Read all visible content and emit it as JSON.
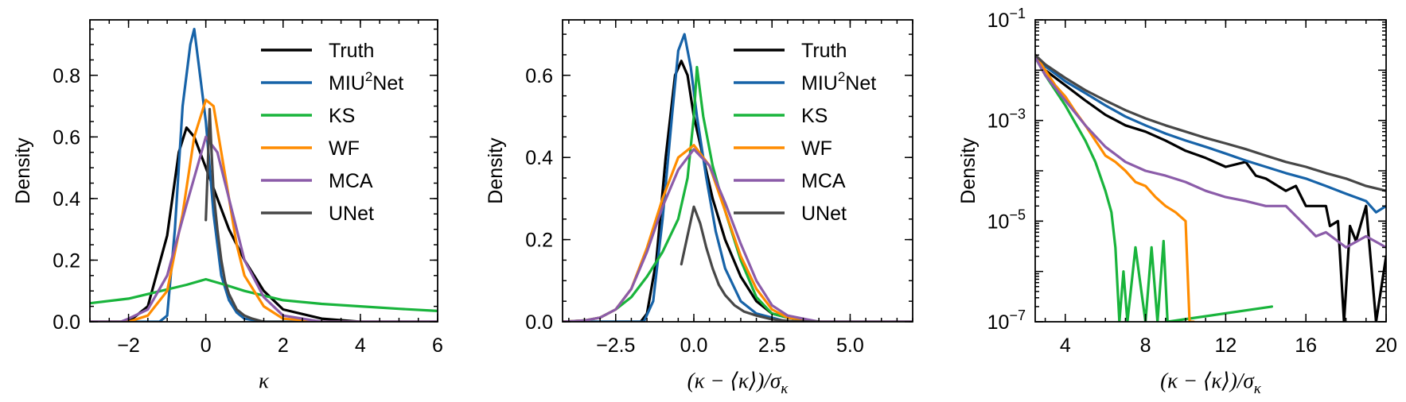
{
  "colors": {
    "Truth": "#000000",
    "MIU2Net": "#1763a8",
    "KS": "#19b43c",
    "WF": "#ff8c00",
    "MCA": "#8b5ca9",
    "UNet": "#474747"
  },
  "chart_data": [
    {
      "type": "line",
      "title": "",
      "xlabel": "κ",
      "ylabel": "Density",
      "xlim": [
        -3,
        6
      ],
      "ylim": [
        0,
        0.98
      ],
      "yscale": "linear",
      "xticks": [
        -2,
        0,
        2,
        4,
        6
      ],
      "xtick_labels": [
        "−2",
        "0",
        "2",
        "4",
        "6"
      ],
      "yticks": [
        0.0,
        0.2,
        0.4,
        0.6,
        0.8
      ],
      "ytick_labels": [
        "0.0",
        "0.2",
        "0.4",
        "0.6",
        "0.8"
      ],
      "legend": {
        "placement": "top-right",
        "entries": [
          "Truth",
          "MIU2Net",
          "KS",
          "WF",
          "MCA",
          "UNet"
        ],
        "labels": [
          "Truth",
          "MIU",
          "KS",
          "WF",
          "MCA",
          "UNet"
        ],
        "superscript": "2",
        "suffix": "Net"
      },
      "series": [
        {
          "name": "Truth",
          "x": [
            -3,
            -2,
            -1.5,
            -1,
            -0.7,
            -0.5,
            -0.3,
            0,
            0.3,
            0.6,
            1,
            1.5,
            2,
            3,
            4,
            6
          ],
          "y": [
            0,
            0,
            0.05,
            0.28,
            0.55,
            0.63,
            0.6,
            0.5,
            0.4,
            0.3,
            0.2,
            0.1,
            0.04,
            0.01,
            0,
            0
          ]
        },
        {
          "name": "MIU2Net",
          "x": [
            -3,
            -1.2,
            -1,
            -0.8,
            -0.6,
            -0.4,
            -0.3,
            -0.2,
            0,
            0.2,
            0.4,
            0.6,
            0.8,
            1,
            1.5,
            6
          ],
          "y": [
            0,
            0,
            0.02,
            0.3,
            0.7,
            0.9,
            0.95,
            0.85,
            0.65,
            0.35,
            0.15,
            0.07,
            0.03,
            0.01,
            0,
            0
          ]
        },
        {
          "name": "KS",
          "x": [
            -3,
            -2,
            -1,
            -0.5,
            0,
            0.5,
            1,
            2,
            3,
            4,
            5,
            6
          ],
          "y": [
            0.06,
            0.075,
            0.105,
            0.12,
            0.138,
            0.12,
            0.1,
            0.07,
            0.058,
            0.05,
            0.042,
            0.035
          ]
        },
        {
          "name": "WF",
          "x": [
            -3,
            -2,
            -1.5,
            -1,
            -0.6,
            -0.3,
            0,
            0.2,
            0.4,
            0.6,
            0.8,
            1,
            1.5,
            2,
            3,
            6
          ],
          "y": [
            0,
            0,
            0.02,
            0.1,
            0.35,
            0.6,
            0.72,
            0.7,
            0.55,
            0.4,
            0.25,
            0.15,
            0.05,
            0.01,
            0,
            0
          ]
        },
        {
          "name": "MCA",
          "x": [
            -3,
            -2.2,
            -2,
            -1.5,
            -1,
            -0.5,
            0,
            0.3,
            0.5,
            0.8,
            1,
            1.5,
            2,
            3,
            6
          ],
          "y": [
            0,
            0,
            0.01,
            0.04,
            0.15,
            0.38,
            0.6,
            0.55,
            0.45,
            0.3,
            0.2,
            0.08,
            0.02,
            0,
            0
          ]
        },
        {
          "name": "UNet",
          "x": [
            0,
            0.05,
            0.1,
            0.15,
            0.2,
            0.3,
            0.4,
            0.5,
            0.6,
            0.8,
            1,
            1.2,
            1.5,
            2
          ],
          "y": [
            0.33,
            0.5,
            0.69,
            0.55,
            0.42,
            0.3,
            0.2,
            0.13,
            0.09,
            0.04,
            0.02,
            0.01,
            0,
            0
          ]
        }
      ]
    },
    {
      "type": "line",
      "title": "",
      "xlabel": "(κ − ⟨κ⟩)/σ",
      "xlabel_sub": "κ",
      "ylabel": "Density",
      "xlim": [
        -4.2,
        7
      ],
      "ylim": [
        0,
        0.735
      ],
      "yscale": "linear",
      "xticks": [
        -2.5,
        0.0,
        2.5,
        5.0
      ],
      "xtick_labels": [
        "−2.5",
        "0.0",
        "2.5",
        "5.0"
      ],
      "yticks": [
        0.0,
        0.2,
        0.4,
        0.6
      ],
      "ytick_labels": [
        "0.0",
        "0.2",
        "0.4",
        "0.6"
      ],
      "legend": {
        "placement": "top-right",
        "entries": [
          "Truth",
          "MIU2Net",
          "KS",
          "WF",
          "MCA",
          "UNet"
        ],
        "labels": [
          "Truth",
          "MIU",
          "KS",
          "WF",
          "MCA",
          "UNet"
        ],
        "superscript": "2",
        "suffix": "Net"
      },
      "series": [
        {
          "name": "Truth",
          "x": [
            -4.2,
            -1.7,
            -1.5,
            -1.2,
            -0.9,
            -0.6,
            -0.4,
            -0.2,
            0,
            0.3,
            0.6,
            1,
            1.5,
            2,
            2.5,
            3,
            4,
            7
          ],
          "y": [
            0,
            0,
            0.02,
            0.15,
            0.4,
            0.6,
            0.635,
            0.6,
            0.5,
            0.4,
            0.3,
            0.2,
            0.11,
            0.05,
            0.02,
            0.01,
            0,
            0
          ]
        },
        {
          "name": "MIU2Net",
          "x": [
            -4.2,
            -1.6,
            -1.3,
            -1,
            -0.7,
            -0.5,
            -0.3,
            -0.1,
            0.1,
            0.4,
            0.7,
            1,
            1.5,
            2,
            3,
            7
          ],
          "y": [
            0,
            0,
            0.05,
            0.25,
            0.5,
            0.66,
            0.7,
            0.62,
            0.5,
            0.35,
            0.22,
            0.13,
            0.05,
            0.02,
            0,
            0
          ]
        },
        {
          "name": "KS",
          "x": [
            -4.2,
            -3.5,
            -3,
            -2.5,
            -2,
            -1.5,
            -1,
            -0.5,
            -0.2,
            0,
            0.1,
            0.3,
            0.6,
            1,
            1.5,
            2,
            2.5,
            3,
            4,
            7
          ],
          "y": [
            0,
            0.003,
            0.01,
            0.03,
            0.06,
            0.11,
            0.17,
            0.25,
            0.35,
            0.5,
            0.62,
            0.5,
            0.38,
            0.27,
            0.15,
            0.06,
            0.02,
            0.01,
            0,
            0
          ]
        },
        {
          "name": "WF",
          "x": [
            -4.2,
            -3.5,
            -3,
            -2.5,
            -2,
            -1.5,
            -1,
            -0.5,
            0,
            0.5,
            1,
            1.5,
            2,
            2.5,
            3,
            4,
            7
          ],
          "y": [
            0,
            0.003,
            0.01,
            0.03,
            0.08,
            0.18,
            0.3,
            0.4,
            0.43,
            0.38,
            0.27,
            0.16,
            0.08,
            0.03,
            0.01,
            0,
            0
          ]
        },
        {
          "name": "MCA",
          "x": [
            -4.2,
            -3.5,
            -3,
            -2.5,
            -2,
            -1.5,
            -1,
            -0.5,
            0,
            0.5,
            1,
            1.5,
            2,
            2.5,
            3,
            4,
            7
          ],
          "y": [
            0,
            0.003,
            0.01,
            0.03,
            0.08,
            0.17,
            0.28,
            0.37,
            0.42,
            0.38,
            0.29,
            0.19,
            0.1,
            0.04,
            0.015,
            0,
            0
          ]
        },
        {
          "name": "UNet",
          "x": [
            -0.4,
            -0.2,
            0,
            0.2,
            0.4,
            0.6,
            0.8,
            1,
            1.3,
            1.6,
            2,
            2.5,
            3,
            4
          ],
          "y": [
            0.14,
            0.21,
            0.28,
            0.24,
            0.18,
            0.13,
            0.09,
            0.065,
            0.04,
            0.025,
            0.015,
            0.006,
            0.002,
            0
          ]
        }
      ]
    },
    {
      "type": "line",
      "title": "",
      "xlabel": "(κ − ⟨κ⟩)/σ",
      "xlabel_sub": "κ",
      "ylabel": "Density",
      "xlim": [
        2.5,
        20
      ],
      "ylim": [
        1e-07,
        0.1
      ],
      "yscale": "log",
      "xticks": [
        4,
        8,
        12,
        16,
        20
      ],
      "xtick_labels": [
        "4",
        "8",
        "12",
        "16",
        "20"
      ],
      "yticks": [
        1e-07,
        1e-05,
        0.001,
        0.1
      ],
      "ytick_labels": [
        {
          "base": "10",
          "exp": "−7"
        },
        {
          "base": "10",
          "exp": "−5"
        },
        {
          "base": "10",
          "exp": "−3"
        },
        {
          "base": "10",
          "exp": "−1"
        }
      ],
      "legend": null,
      "series": [
        {
          "name": "Truth",
          "x": [
            2.5,
            3,
            4,
            5,
            6,
            7,
            8,
            9,
            10,
            11,
            12,
            13,
            13.5,
            14,
            15,
            15.5,
            16,
            17,
            17.2,
            17.6,
            17.9,
            18.2,
            18.5,
            19,
            19.5,
            20
          ],
          "y": [
            0.02,
            0.01,
            0.005,
            0.0025,
            0.0013,
            0.0008,
            0.0006,
            0.0004,
            0.00025,
            0.00018,
            0.00012,
            0.00015,
            8e-05,
            7e-05,
            4e-05,
            5e-05,
            2e-05,
            2e-05,
            8e-06,
            1e-05,
            1e-07,
            8e-06,
            4e-06,
            2e-05,
            1e-07,
            2e-06
          ]
        },
        {
          "name": "MIU2Net",
          "x": [
            2.5,
            3,
            4,
            5,
            6,
            7,
            8,
            9,
            10,
            11,
            12,
            13,
            14,
            15,
            16,
            17,
            18,
            19,
            19.5,
            20
          ],
          "y": [
            0.02,
            0.012,
            0.006,
            0.0035,
            0.002,
            0.0012,
            0.0008,
            0.00055,
            0.0004,
            0.0003,
            0.00022,
            0.00016,
            0.00012,
            9e-05,
            7e-05,
            5e-05,
            3.5e-05,
            2.5e-05,
            1.5e-05,
            2e-05
          ]
        },
        {
          "name": "KS",
          "x": [
            2.5,
            3,
            4,
            5,
            5.5,
            6,
            6.3,
            6.5,
            6.7,
            6.9,
            7.1,
            7.5,
            8,
            8.3,
            8.6,
            8.9,
            9.1,
            14.3
          ],
          "y": [
            0.018,
            0.008,
            0.002,
            0.0004,
            0.00015,
            4e-05,
            1.5e-05,
            3e-06,
            1e-07,
            1e-06,
            1e-07,
            3e-06,
            1e-07,
            3e-06,
            1e-07,
            4e-06,
            1e-07,
            2e-07
          ]
        },
        {
          "name": "WF",
          "x": [
            2.5,
            3,
            3.5,
            4,
            4.5,
            5,
            5.5,
            6,
            6.5,
            7,
            7.5,
            8,
            8.5,
            9,
            9.5,
            10,
            10.2,
            10.4
          ],
          "y": [
            0.02,
            0.01,
            0.005,
            0.003,
            0.0015,
            0.0008,
            0.0004,
            0.0002,
            0.00015,
            0.0001,
            6e-05,
            5e-05,
            3e-05,
            2e-05,
            1.5e-05,
            1e-05,
            1e-07,
            1e-07
          ]
        },
        {
          "name": "MCA",
          "x": [
            2.5,
            3,
            4,
            5,
            6,
            7,
            8,
            9,
            10,
            11,
            12,
            13,
            14,
            15,
            16,
            16.5,
            17,
            18,
            19,
            20
          ],
          "y": [
            0.018,
            0.008,
            0.0025,
            0.0008,
            0.0003,
            0.00015,
            0.0001,
            8e-05,
            6e-05,
            4e-05,
            3e-05,
            2.5e-05,
            2e-05,
            2e-05,
            8e-06,
            5e-06,
            6e-06,
            3e-06,
            5e-06,
            3e-06
          ]
        },
        {
          "name": "UNet",
          "x": [
            2.5,
            3,
            4,
            5,
            6,
            7,
            8,
            9,
            10,
            11,
            12,
            13,
            14,
            15,
            16,
            17,
            18,
            19,
            20
          ],
          "y": [
            0.02,
            0.013,
            0.007,
            0.004,
            0.0025,
            0.0016,
            0.0011,
            0.0008,
            0.0006,
            0.00045,
            0.00035,
            0.00027,
            0.0002,
            0.00015,
            0.00012,
            9e-05,
            7e-05,
            5e-05,
            4e-05
          ]
        }
      ]
    }
  ]
}
